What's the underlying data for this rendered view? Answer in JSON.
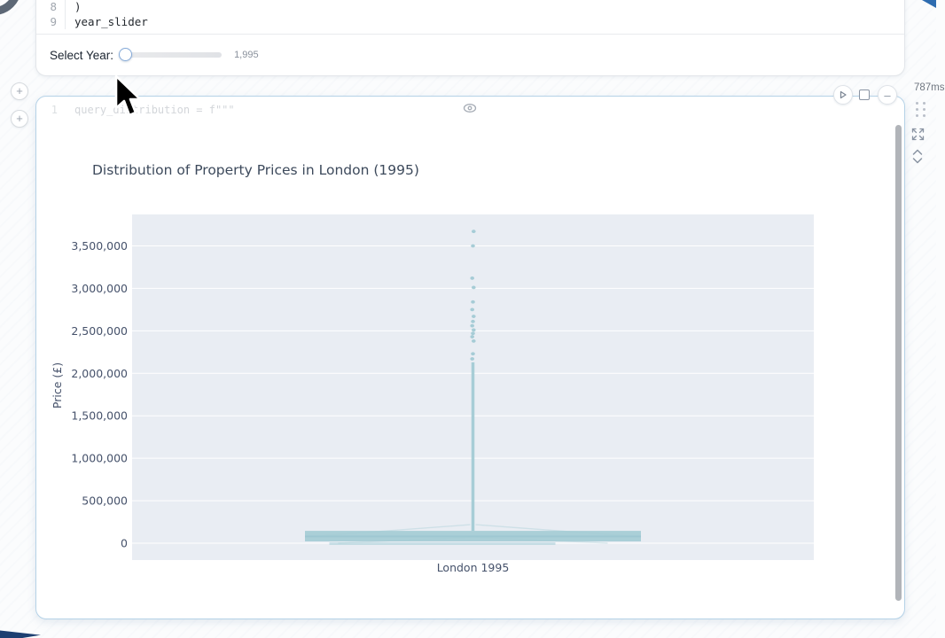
{
  "runtime_badge": "787ms",
  "cell_one": {
    "code_lines": [
      {
        "num": "8",
        "text": ")"
      },
      {
        "num": "9",
        "text": "year_slider"
      }
    ],
    "slider": {
      "label": "Select Year:",
      "value": "1,995"
    }
  },
  "cell_two": {
    "line_num": "1",
    "code": "query_distribution = f\"\"\""
  },
  "add_buttons": {
    "top": "+",
    "bottom": "+"
  },
  "controls": {
    "minus": "–"
  },
  "chart_data": {
    "type": "boxplot",
    "title": "Distribution of Property Prices in London (1995)",
    "ylabel": "Price (£)",
    "xlabel": "",
    "categories": [
      "London 1995"
    ],
    "y_ticks": [
      0,
      500000,
      1000000,
      1500000,
      2000000,
      2500000,
      3000000,
      3500000
    ],
    "y_tick_labels": [
      "0",
      "500,000",
      "1,000,000",
      "1,500,000",
      "2,000,000",
      "2,500,000",
      "3,000,000",
      "3,500,000"
    ],
    "ylim": [
      -210000,
      3880000
    ],
    "grid": true,
    "legend": false,
    "plot_bg": "#e9edf3",
    "series_color": "#a4ccd5",
    "box": {
      "q1": 21000,
      "median": 80000,
      "q3": 145000,
      "whisker_low": 0,
      "whisker_high": 2130000
    },
    "outliers": [
      2170000,
      2230000,
      2380000,
      2430000,
      2470000,
      2510000,
      2560000,
      2610000,
      2670000,
      2750000,
      2840000,
      3010000,
      3120000,
      3500000,
      3670000
    ]
  }
}
